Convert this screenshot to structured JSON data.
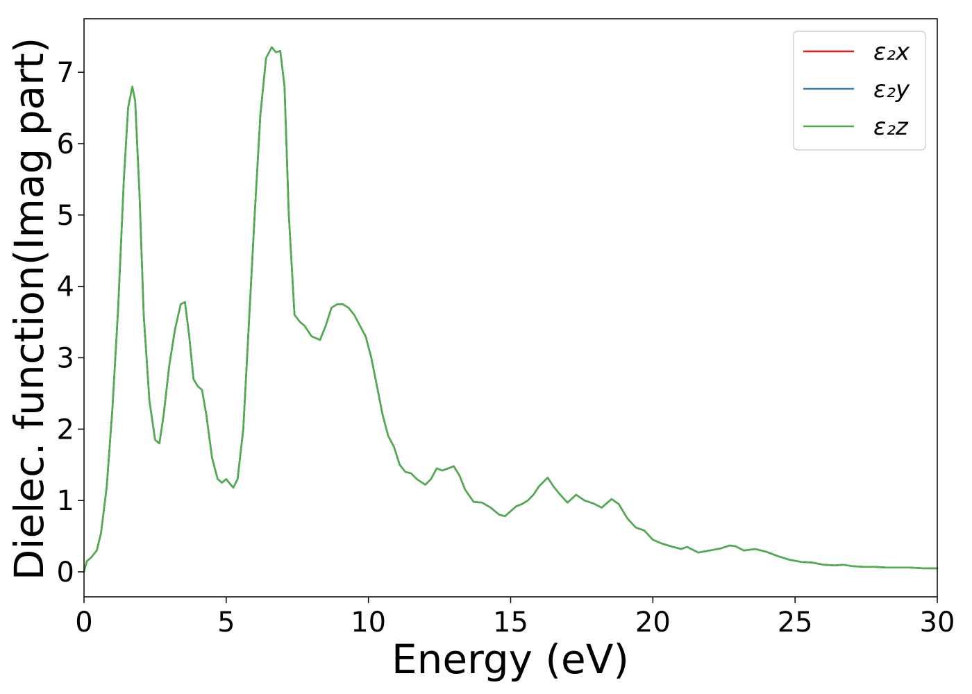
{
  "chart_data": {
    "type": "line",
    "title": "",
    "xlabel": "Energy (eV)",
    "ylabel": "Dielec. function(Imag part)",
    "xlim": [
      0,
      30
    ],
    "ylim": [
      -0.35,
      7.75
    ],
    "xticks": [
      0,
      5,
      10,
      15,
      20,
      25,
      30
    ],
    "yticks": [
      0,
      1,
      2,
      3,
      4,
      5,
      6,
      7
    ],
    "xtick_labels": [
      "0",
      "5",
      "10",
      "15",
      "20",
      "25",
      "30"
    ],
    "ytick_labels": [
      "0",
      "1",
      "2",
      "3",
      "4",
      "5",
      "6",
      "7"
    ],
    "grid": false,
    "legend_position": "top-right",
    "series": [
      {
        "name": "ε₂x",
        "color": "#e41a1c",
        "x": [
          0,
          0.1,
          0.25,
          0.45,
          0.6,
          0.8,
          1.0,
          1.2,
          1.4,
          1.55,
          1.7,
          1.8,
          1.95,
          2.1,
          2.3,
          2.5,
          2.65,
          2.8,
          3.0,
          3.2,
          3.4,
          3.55,
          3.7,
          3.85,
          4.0,
          4.15,
          4.3,
          4.5,
          4.7,
          4.85,
          5.0,
          5.1,
          5.25,
          5.4,
          5.6,
          5.8,
          6.0,
          6.2,
          6.4,
          6.6,
          6.75,
          6.9,
          7.05,
          7.2,
          7.4,
          7.6,
          7.75,
          8.0,
          8.3,
          8.5,
          8.7,
          8.9,
          9.1,
          9.3,
          9.5,
          9.7,
          9.9,
          10.1,
          10.3,
          10.5,
          10.7,
          10.9,
          11.1,
          11.3,
          11.5,
          11.7,
          12.0,
          12.2,
          12.4,
          12.6,
          12.8,
          13.0,
          13.2,
          13.4,
          13.7,
          14.0,
          14.3,
          14.6,
          14.8,
          15.0,
          15.2,
          15.4,
          15.6,
          15.8,
          16.0,
          16.3,
          16.5,
          16.7,
          17.0,
          17.3,
          17.6,
          17.9,
          18.2,
          18.55,
          18.8,
          19.1,
          19.4,
          19.7,
          20.0,
          20.3,
          20.7,
          21.0,
          21.2,
          21.6,
          22.0,
          22.4,
          22.7,
          22.9,
          23.2,
          23.6,
          24.0,
          24.4,
          24.8,
          25.2,
          25.6,
          26.0,
          26.4,
          26.7,
          27.0,
          27.4,
          27.8,
          28.2,
          28.6,
          29.0,
          29.5,
          30.0
        ],
        "y": [
          0.0,
          0.15,
          0.2,
          0.3,
          0.55,
          1.2,
          2.3,
          3.7,
          5.5,
          6.5,
          6.8,
          6.6,
          5.3,
          3.6,
          2.4,
          1.85,
          1.8,
          2.2,
          2.9,
          3.4,
          3.75,
          3.78,
          3.3,
          2.7,
          2.6,
          2.55,
          2.2,
          1.6,
          1.3,
          1.25,
          1.3,
          1.25,
          1.18,
          1.3,
          2.0,
          3.5,
          5.0,
          6.4,
          7.2,
          7.35,
          7.28,
          7.3,
          6.8,
          5.0,
          3.6,
          3.5,
          3.45,
          3.3,
          3.25,
          3.45,
          3.7,
          3.75,
          3.75,
          3.7,
          3.6,
          3.45,
          3.3,
          3.0,
          2.6,
          2.2,
          1.9,
          1.75,
          1.5,
          1.4,
          1.38,
          1.3,
          1.22,
          1.3,
          1.45,
          1.42,
          1.45,
          1.48,
          1.35,
          1.15,
          0.98,
          0.97,
          0.9,
          0.8,
          0.78,
          0.85,
          0.92,
          0.95,
          1.0,
          1.08,
          1.2,
          1.32,
          1.2,
          1.1,
          0.97,
          1.08,
          1.0,
          0.96,
          0.9,
          1.02,
          0.95,
          0.75,
          0.62,
          0.58,
          0.45,
          0.4,
          0.35,
          0.32,
          0.35,
          0.27,
          0.3,
          0.33,
          0.37,
          0.36,
          0.3,
          0.32,
          0.28,
          0.22,
          0.17,
          0.14,
          0.13,
          0.1,
          0.09,
          0.1,
          0.08,
          0.07,
          0.07,
          0.06,
          0.06,
          0.06,
          0.05,
          0.05
        ]
      },
      {
        "name": "ε₂y",
        "color": "#377eb8",
        "x": [
          0,
          0.1,
          0.25,
          0.45,
          0.6,
          0.8,
          1.0,
          1.2,
          1.4,
          1.55,
          1.7,
          1.8,
          1.95,
          2.1,
          2.3,
          2.5,
          2.65,
          2.8,
          3.0,
          3.2,
          3.4,
          3.55,
          3.7,
          3.85,
          4.0,
          4.15,
          4.3,
          4.5,
          4.7,
          4.85,
          5.0,
          5.1,
          5.25,
          5.4,
          5.6,
          5.8,
          6.0,
          6.2,
          6.4,
          6.6,
          6.75,
          6.9,
          7.05,
          7.2,
          7.4,
          7.6,
          7.75,
          8.0,
          8.3,
          8.5,
          8.7,
          8.9,
          9.1,
          9.3,
          9.5,
          9.7,
          9.9,
          10.1,
          10.3,
          10.5,
          10.7,
          10.9,
          11.1,
          11.3,
          11.5,
          11.7,
          12.0,
          12.2,
          12.4,
          12.6,
          12.8,
          13.0,
          13.2,
          13.4,
          13.7,
          14.0,
          14.3,
          14.6,
          14.8,
          15.0,
          15.2,
          15.4,
          15.6,
          15.8,
          16.0,
          16.3,
          16.5,
          16.7,
          17.0,
          17.3,
          17.6,
          17.9,
          18.2,
          18.55,
          18.8,
          19.1,
          19.4,
          19.7,
          20.0,
          20.3,
          20.7,
          21.0,
          21.2,
          21.6,
          22.0,
          22.4,
          22.7,
          22.9,
          23.2,
          23.6,
          24.0,
          24.4,
          24.8,
          25.2,
          25.6,
          26.0,
          26.4,
          26.7,
          27.0,
          27.4,
          27.8,
          28.2,
          28.6,
          29.0,
          29.5,
          30.0
        ],
        "y": [
          0.0,
          0.15,
          0.2,
          0.3,
          0.55,
          1.2,
          2.3,
          3.7,
          5.5,
          6.5,
          6.8,
          6.6,
          5.3,
          3.6,
          2.4,
          1.85,
          1.8,
          2.2,
          2.9,
          3.4,
          3.75,
          3.78,
          3.3,
          2.7,
          2.6,
          2.55,
          2.2,
          1.6,
          1.3,
          1.25,
          1.3,
          1.25,
          1.18,
          1.3,
          2.0,
          3.5,
          5.0,
          6.4,
          7.2,
          7.35,
          7.28,
          7.3,
          6.8,
          5.0,
          3.6,
          3.5,
          3.45,
          3.3,
          3.25,
          3.45,
          3.7,
          3.75,
          3.75,
          3.7,
          3.6,
          3.45,
          3.3,
          3.0,
          2.6,
          2.2,
          1.9,
          1.75,
          1.5,
          1.4,
          1.38,
          1.3,
          1.22,
          1.3,
          1.45,
          1.42,
          1.45,
          1.48,
          1.35,
          1.15,
          0.98,
          0.97,
          0.9,
          0.8,
          0.78,
          0.85,
          0.92,
          0.95,
          1.0,
          1.08,
          1.2,
          1.32,
          1.2,
          1.1,
          0.97,
          1.08,
          1.0,
          0.96,
          0.9,
          1.02,
          0.95,
          0.75,
          0.62,
          0.58,
          0.45,
          0.4,
          0.35,
          0.32,
          0.35,
          0.27,
          0.3,
          0.33,
          0.37,
          0.36,
          0.3,
          0.32,
          0.28,
          0.22,
          0.17,
          0.14,
          0.13,
          0.1,
          0.09,
          0.1,
          0.08,
          0.07,
          0.07,
          0.06,
          0.06,
          0.06,
          0.05,
          0.05
        ]
      },
      {
        "name": "ε₂z",
        "color": "#4daf4a",
        "x": [
          0,
          0.1,
          0.25,
          0.45,
          0.6,
          0.8,
          1.0,
          1.2,
          1.4,
          1.55,
          1.7,
          1.8,
          1.95,
          2.1,
          2.3,
          2.5,
          2.65,
          2.8,
          3.0,
          3.2,
          3.4,
          3.55,
          3.7,
          3.85,
          4.0,
          4.15,
          4.3,
          4.5,
          4.7,
          4.85,
          5.0,
          5.1,
          5.25,
          5.4,
          5.6,
          5.8,
          6.0,
          6.2,
          6.4,
          6.6,
          6.75,
          6.9,
          7.05,
          7.2,
          7.4,
          7.6,
          7.75,
          8.0,
          8.3,
          8.5,
          8.7,
          8.9,
          9.1,
          9.3,
          9.5,
          9.7,
          9.9,
          10.1,
          10.3,
          10.5,
          10.7,
          10.9,
          11.1,
          11.3,
          11.5,
          11.7,
          12.0,
          12.2,
          12.4,
          12.6,
          12.8,
          13.0,
          13.2,
          13.4,
          13.7,
          14.0,
          14.3,
          14.6,
          14.8,
          15.0,
          15.2,
          15.4,
          15.6,
          15.8,
          16.0,
          16.3,
          16.5,
          16.7,
          17.0,
          17.3,
          17.6,
          17.9,
          18.2,
          18.55,
          18.8,
          19.1,
          19.4,
          19.7,
          20.0,
          20.3,
          20.7,
          21.0,
          21.2,
          21.6,
          22.0,
          22.4,
          22.7,
          22.9,
          23.2,
          23.6,
          24.0,
          24.4,
          24.8,
          25.2,
          25.6,
          26.0,
          26.4,
          26.7,
          27.0,
          27.4,
          27.8,
          28.2,
          28.6,
          29.0,
          29.5,
          30.0
        ],
        "y": [
          0.0,
          0.15,
          0.2,
          0.3,
          0.55,
          1.2,
          2.3,
          3.7,
          5.5,
          6.5,
          6.8,
          6.6,
          5.3,
          3.6,
          2.4,
          1.85,
          1.8,
          2.2,
          2.9,
          3.4,
          3.75,
          3.78,
          3.3,
          2.7,
          2.6,
          2.55,
          2.2,
          1.6,
          1.3,
          1.25,
          1.3,
          1.25,
          1.18,
          1.3,
          2.0,
          3.5,
          5.0,
          6.4,
          7.2,
          7.35,
          7.28,
          7.3,
          6.8,
          5.0,
          3.6,
          3.5,
          3.45,
          3.3,
          3.25,
          3.45,
          3.7,
          3.75,
          3.75,
          3.7,
          3.6,
          3.45,
          3.3,
          3.0,
          2.6,
          2.2,
          1.9,
          1.75,
          1.5,
          1.4,
          1.38,
          1.3,
          1.22,
          1.3,
          1.45,
          1.42,
          1.45,
          1.48,
          1.35,
          1.15,
          0.98,
          0.97,
          0.9,
          0.8,
          0.78,
          0.85,
          0.92,
          0.95,
          1.0,
          1.08,
          1.2,
          1.32,
          1.2,
          1.1,
          0.97,
          1.08,
          1.0,
          0.96,
          0.9,
          1.02,
          0.95,
          0.75,
          0.62,
          0.58,
          0.45,
          0.4,
          0.35,
          0.32,
          0.35,
          0.27,
          0.3,
          0.33,
          0.37,
          0.36,
          0.3,
          0.32,
          0.28,
          0.22,
          0.17,
          0.14,
          0.13,
          0.1,
          0.09,
          0.1,
          0.08,
          0.07,
          0.07,
          0.06,
          0.06,
          0.06,
          0.05,
          0.05
        ]
      }
    ]
  }
}
